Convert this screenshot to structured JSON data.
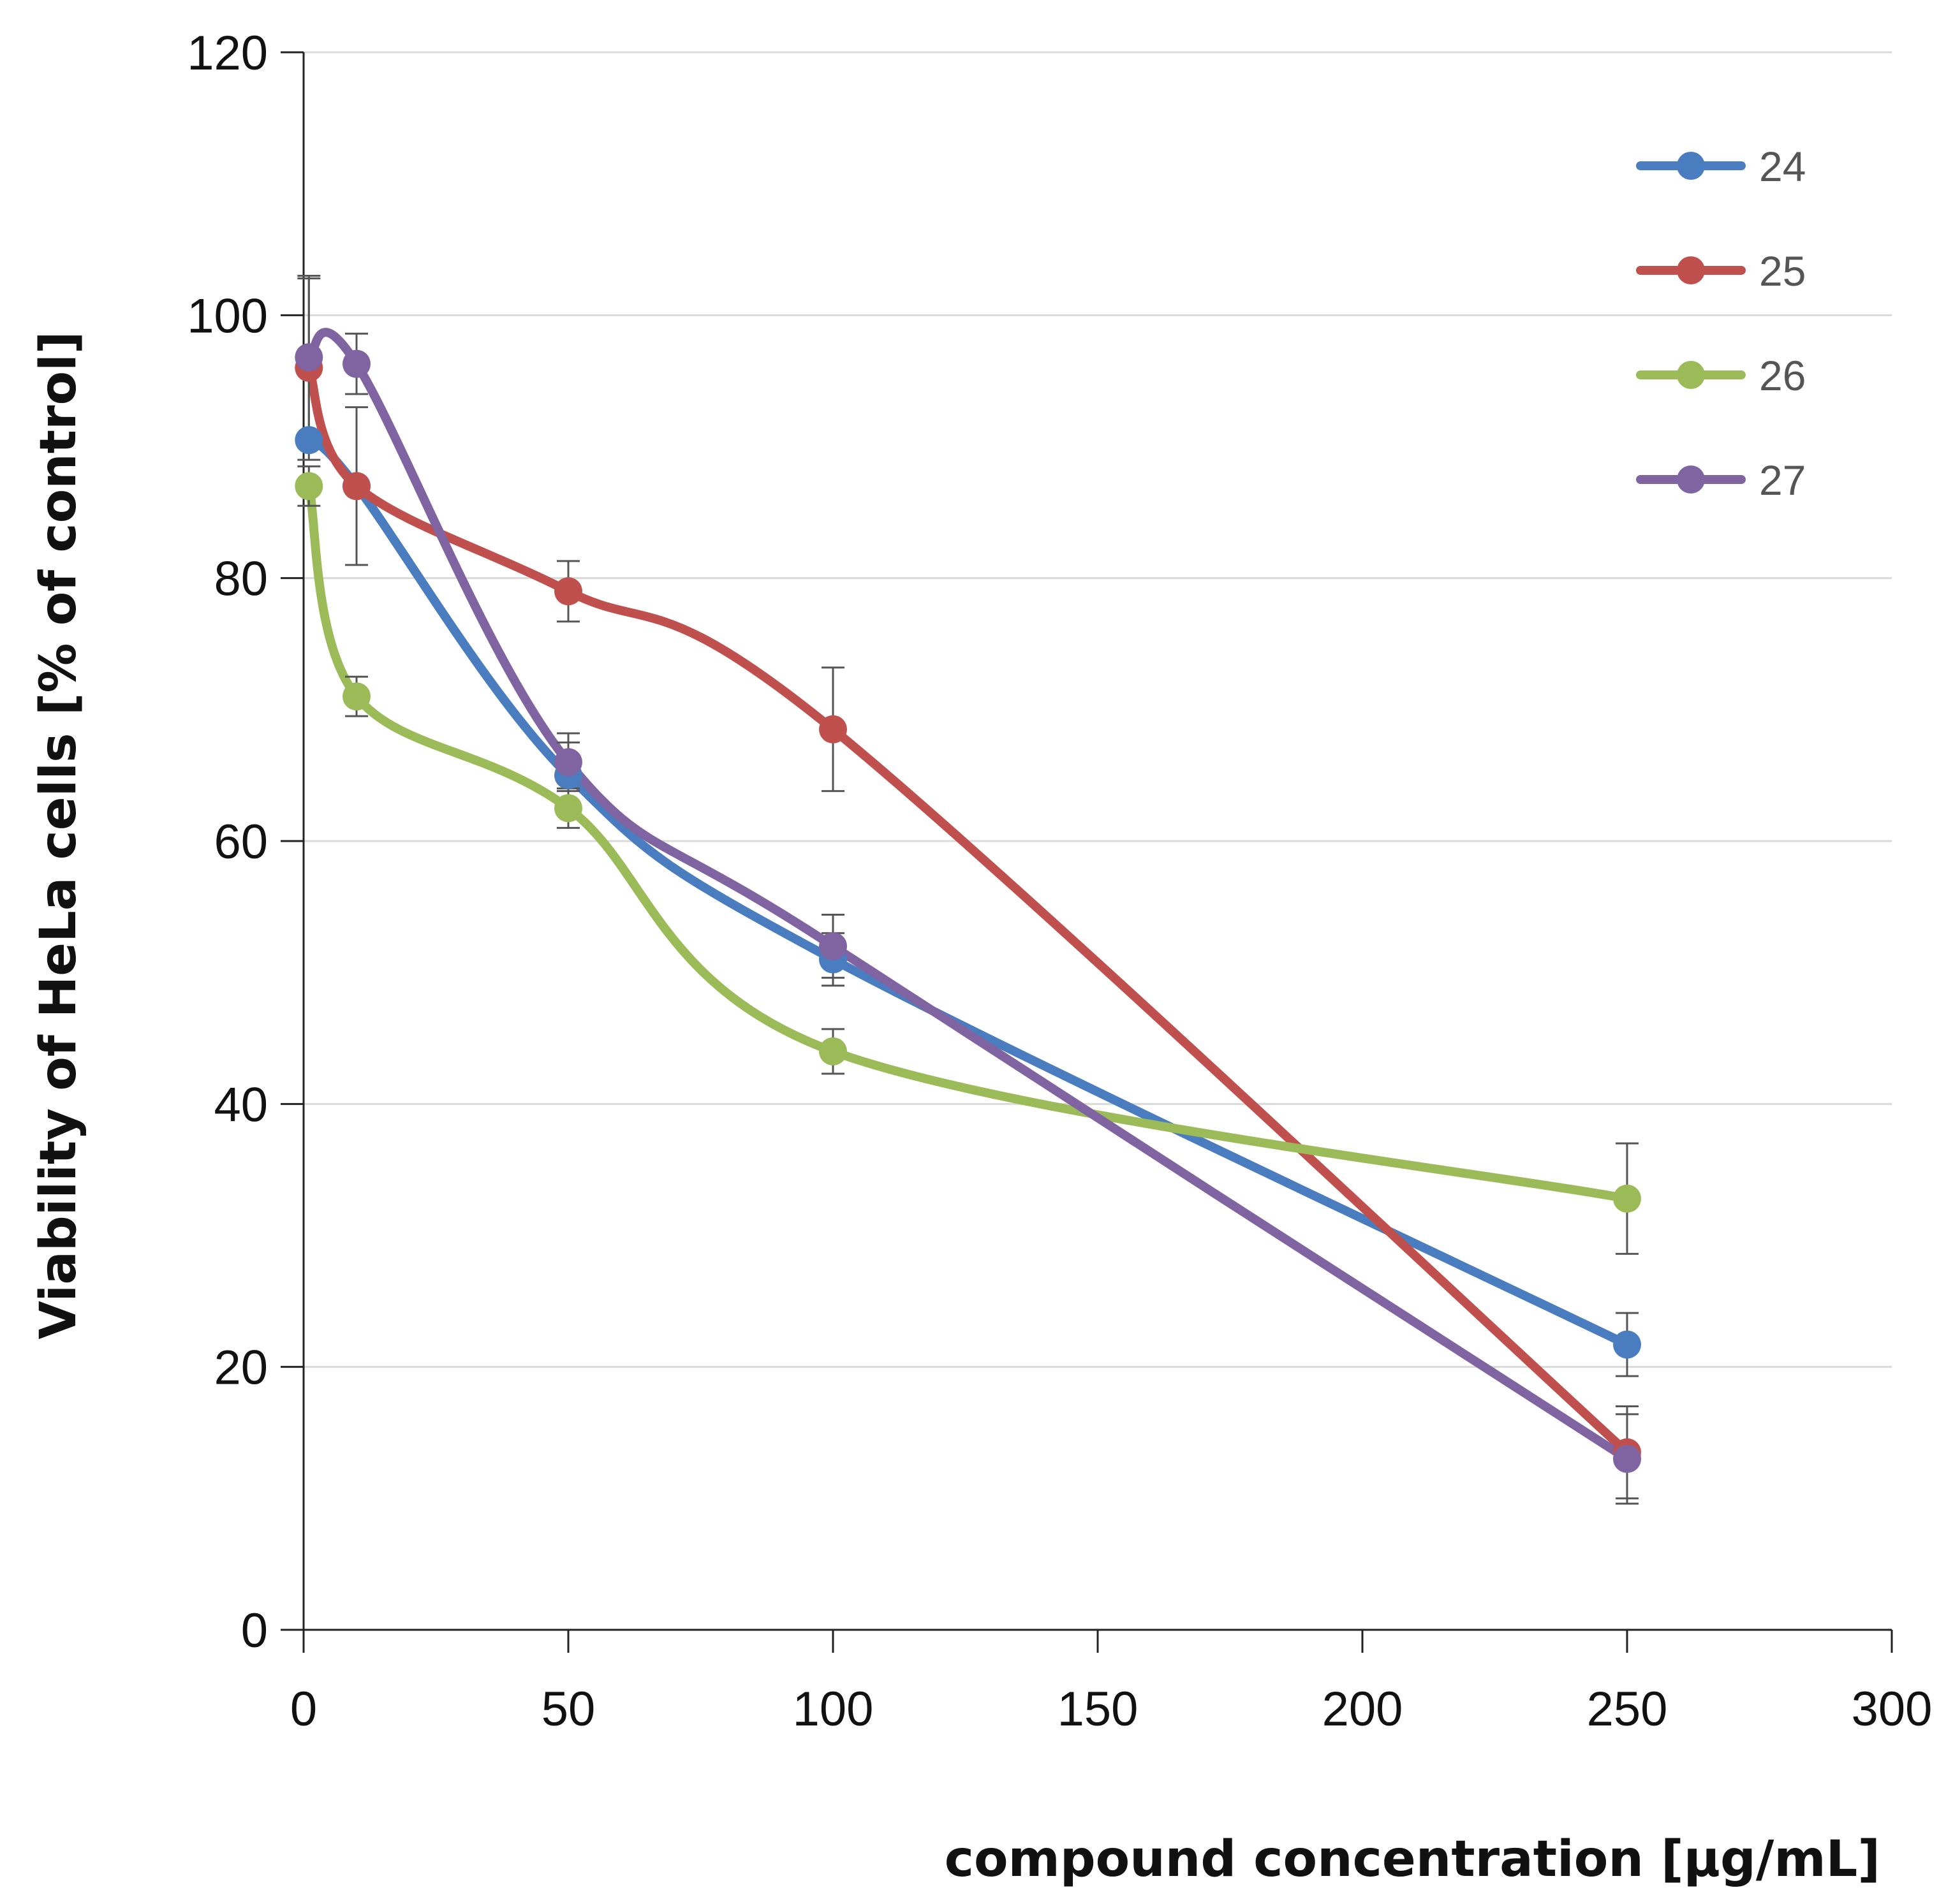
{
  "chart_data": {
    "type": "line",
    "title": "",
    "xlabel": "compound concentration [µg/mL]",
    "ylabel": "Viability of HeLa cells [% of control]",
    "xlim": [
      0,
      300
    ],
    "ylim": [
      0,
      120
    ],
    "x_ticks": [
      0,
      50,
      100,
      150,
      200,
      250,
      300
    ],
    "y_ticks": [
      0,
      20,
      40,
      60,
      80,
      100,
      120
    ],
    "grid": "horizontal",
    "legend_position": "top-right",
    "smooth": true,
    "x": [
      1,
      10,
      50,
      100,
      250
    ],
    "series": [
      {
        "name": "24",
        "color": "#4a7dbf",
        "values": [
          90.5,
          87,
          65,
          51,
          21.7
        ],
        "errors": [
          0,
          0,
          2.5,
          2.0,
          2.4
        ]
      },
      {
        "name": "25",
        "color": "#c0504d",
        "values": [
          96,
          87,
          79,
          68.5,
          13.5
        ],
        "errors": [
          7,
          6,
          2.3,
          4.7,
          3.5
        ]
      },
      {
        "name": "26",
        "color": "#9bbb59",
        "values": [
          87,
          71,
          62.5,
          44,
          32.8
        ],
        "errors": [
          1.5,
          1.5,
          1.5,
          1.7,
          4.2
        ]
      },
      {
        "name": "27",
        "color": "#8064a2",
        "values": [
          96.8,
          96.3,
          66,
          52,
          13
        ],
        "errors": [
          6,
          2.3,
          2.2,
          2.4,
          3.4
        ]
      }
    ]
  }
}
